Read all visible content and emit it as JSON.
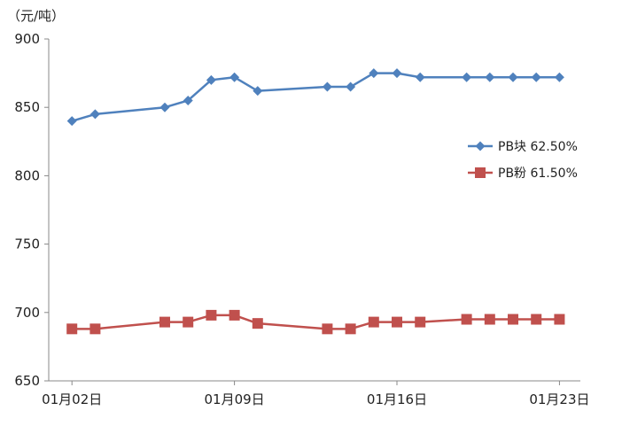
{
  "chart_data": {
    "type": "line",
    "ylabel": "（元/吨）",
    "ylim": [
      650,
      900
    ],
    "yticks": [
      650,
      700,
      750,
      800,
      850,
      900
    ],
    "xlim": [
      1,
      23.9
    ],
    "xticks": [
      {
        "day": 2,
        "label": "01月02日"
      },
      {
        "day": 9,
        "label": "01月09日"
      },
      {
        "day": 16,
        "label": "01月16日"
      },
      {
        "day": 23,
        "label": "01月23日"
      }
    ],
    "x": [
      2,
      3,
      6,
      7,
      8,
      9,
      10,
      13,
      14,
      15,
      16,
      17,
      19,
      20,
      21,
      22,
      23
    ],
    "series": [
      {
        "name": "PB块 62.50%",
        "color": "#4f81bd",
        "marker": "diamond",
        "values": [
          840,
          845,
          850,
          855,
          870,
          872,
          862,
          865,
          865,
          875,
          875,
          872,
          872,
          872,
          872,
          872,
          872
        ]
      },
      {
        "name": "PB粉 61.50%",
        "color": "#c0504d",
        "marker": "square",
        "values": [
          688,
          688,
          693,
          693,
          698,
          698,
          692,
          688,
          688,
          693,
          693,
          693,
          695,
          695,
          695,
          695,
          695
        ]
      }
    ],
    "legend_position": "right"
  }
}
